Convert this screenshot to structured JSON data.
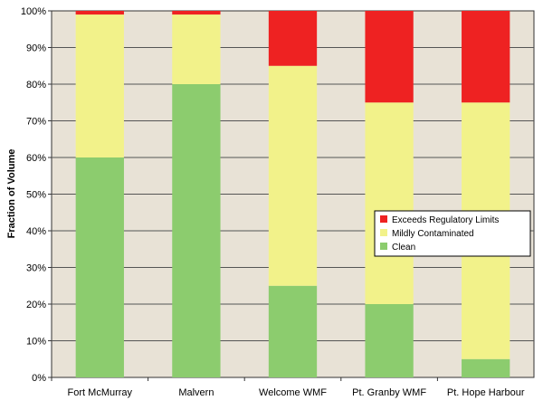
{
  "chart_data": {
    "type": "bar",
    "stacked": true,
    "categories": [
      "Fort McMurray",
      "Malvern",
      "Welcome WMF",
      "Pt. Granby WMF",
      "Pt. Hope Harbour"
    ],
    "series": [
      {
        "name": "Clean",
        "color": "#8ccc6e",
        "values": [
          60,
          80,
          25,
          20,
          5
        ]
      },
      {
        "name": "Mildly Contaminated",
        "color": "#f2f28a",
        "values": [
          39,
          19,
          60,
          55,
          70
        ]
      },
      {
        "name": "Exceeds Regulatory Limits",
        "color": "#ee2222",
        "values": [
          1,
          1,
          15,
          25,
          25
        ]
      }
    ],
    "ylabel": "Fraction of Volume",
    "xlabel": "",
    "ylim": [
      0,
      100
    ],
    "yticks": [
      "0%",
      "10%",
      "20%",
      "30%",
      "40%",
      "50%",
      "60%",
      "70%",
      "80%",
      "90%",
      "100%"
    ],
    "legend": {
      "position": "right",
      "entries": [
        "Exceeds Regulatory Limits",
        "Mildly Contaminated",
        "Clean"
      ]
    },
    "plot_background": "#e8e2d6",
    "gridlines": true
  }
}
